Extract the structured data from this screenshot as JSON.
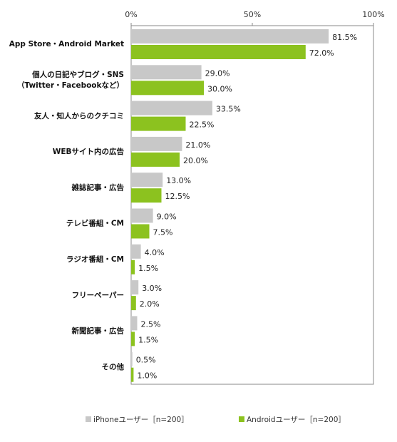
{
  "chart_data": {
    "type": "bar",
    "orientation": "horizontal",
    "xlim": [
      0,
      100
    ],
    "x_ticks": [
      "0%",
      "50%",
      "100%"
    ],
    "categories": [
      [
        "App Store・Android Market"
      ],
      [
        "個人の日記やブログ・SNS",
        "（Twitter・Facebookなど）"
      ],
      [
        "友人・知人からのクチコミ"
      ],
      [
        "WEBサイト内の広告"
      ],
      [
        "雑誌記事・広告"
      ],
      [
        "テレビ番組・CM"
      ],
      [
        "ラジオ番組・CM"
      ],
      [
        "フリーペーパー"
      ],
      [
        "新聞記事・広告"
      ],
      [
        "その他"
      ]
    ],
    "series": [
      {
        "name": "iPhoneユーザー［n=200］",
        "color": "#c8c8c8",
        "values": [
          81.5,
          29.0,
          33.5,
          21.0,
          13.0,
          9.0,
          4.0,
          3.0,
          2.5,
          0.5
        ],
        "labels": [
          "81.5%",
          "29.0%",
          "33.5%",
          "21.0%",
          "13.0%",
          "9.0%",
          "4.0%",
          "3.0%",
          "2.5%",
          "0.5%"
        ]
      },
      {
        "name": "Androidユーザー［n=200］",
        "color": "#8cc21f",
        "values": [
          72.0,
          30.0,
          22.5,
          20.0,
          12.5,
          7.5,
          1.5,
          2.0,
          1.5,
          1.0
        ],
        "labels": [
          "72.0%",
          "30.0%",
          "22.5%",
          "20.0%",
          "12.5%",
          "7.5%",
          "1.5%",
          "2.0%",
          "1.5%",
          "1.0%"
        ]
      }
    ],
    "legend_position": "bottom"
  }
}
